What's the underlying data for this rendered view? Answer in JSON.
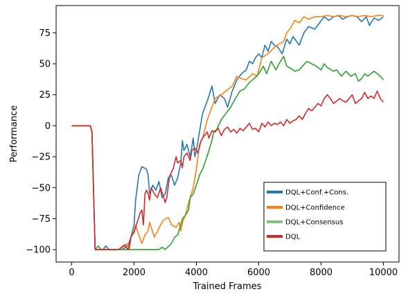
{
  "chart_data": {
    "type": "line",
    "title": "",
    "xlabel": "Trained Frames",
    "ylabel": "Performance",
    "xlim": [
      -500,
      10500
    ],
    "ylim": [
      -110,
      97
    ],
    "xticks": [
      0,
      2000,
      4000,
      6000,
      8000,
      10000
    ],
    "yticks": [
      -100,
      -75,
      -50,
      -25,
      0,
      25,
      50,
      75
    ],
    "xtick_labels": [
      "0",
      "2000",
      "4000",
      "6000",
      "8000",
      "10000"
    ],
    "ytick_labels": [
      "−100",
      "−75",
      "−50",
      "−25",
      "0",
      "25",
      "50",
      "75"
    ],
    "grid": false,
    "legend_position": "lower-right",
    "series": [
      {
        "name": "DQL+Conf.+Cons.",
        "color": "#1f77b4",
        "points": [
          [
            0,
            0
          ],
          [
            600,
            0
          ],
          [
            650,
            -5
          ],
          [
            750,
            -100
          ],
          [
            1000,
            -100
          ],
          [
            1100,
            -97
          ],
          [
            1200,
            -100
          ],
          [
            1600,
            -100
          ],
          [
            1800,
            -97
          ],
          [
            1900,
            -90
          ],
          [
            2000,
            -80
          ],
          [
            2050,
            -60
          ],
          [
            2150,
            -40
          ],
          [
            2250,
            -33
          ],
          [
            2400,
            -35
          ],
          [
            2450,
            -40
          ],
          [
            2500,
            -55
          ],
          [
            2600,
            -48
          ],
          [
            2700,
            -52
          ],
          [
            2800,
            -45
          ],
          [
            2900,
            -58
          ],
          [
            3000,
            -55
          ],
          [
            3100,
            -42
          ],
          [
            3200,
            -40
          ],
          [
            3300,
            -48
          ],
          [
            3400,
            -42
          ],
          [
            3500,
            -30
          ],
          [
            3550,
            -12
          ],
          [
            3600,
            -20
          ],
          [
            3700,
            -15
          ],
          [
            3800,
            -25
          ],
          [
            3900,
            -10
          ],
          [
            3950,
            -25
          ],
          [
            4000,
            -20
          ],
          [
            4100,
            -5
          ],
          [
            4200,
            10
          ],
          [
            4350,
            20
          ],
          [
            4500,
            32
          ],
          [
            4600,
            18
          ],
          [
            4750,
            25
          ],
          [
            4900,
            22
          ],
          [
            5000,
            15
          ],
          [
            5150,
            28
          ],
          [
            5300,
            37
          ],
          [
            5450,
            42
          ],
          [
            5600,
            45
          ],
          [
            5700,
            52
          ],
          [
            5800,
            50
          ],
          [
            5900,
            55
          ],
          [
            6000,
            58
          ],
          [
            6100,
            55
          ],
          [
            6200,
            65
          ],
          [
            6300,
            60
          ],
          [
            6400,
            68
          ],
          [
            6500,
            65
          ],
          [
            6600,
            64
          ],
          [
            6750,
            58
          ],
          [
            6900,
            70
          ],
          [
            7000,
            66
          ],
          [
            7100,
            72
          ],
          [
            7300,
            65
          ],
          [
            7450,
            75
          ],
          [
            7600,
            80
          ],
          [
            7800,
            78
          ],
          [
            7950,
            83
          ],
          [
            8100,
            88
          ],
          [
            8250,
            85
          ],
          [
            8400,
            88
          ],
          [
            8550,
            89
          ],
          [
            8700,
            86
          ],
          [
            8850,
            88
          ],
          [
            9000,
            89
          ],
          [
            9150,
            88
          ],
          [
            9300,
            84
          ],
          [
            9450,
            88
          ],
          [
            9550,
            81
          ],
          [
            9700,
            87
          ],
          [
            9850,
            85
          ],
          [
            10000,
            88
          ]
        ]
      },
      {
        "name": "DQL+Confidence",
        "color": "#ff7f0e",
        "points": [
          [
            0,
            0
          ],
          [
            600,
            0
          ],
          [
            650,
            -5
          ],
          [
            750,
            -100
          ],
          [
            1000,
            -100
          ],
          [
            1200,
            -100
          ],
          [
            1500,
            -100
          ],
          [
            1700,
            -97
          ],
          [
            1800,
            -95
          ],
          [
            1850,
            -100
          ],
          [
            1900,
            -90
          ],
          [
            2000,
            -85
          ],
          [
            2050,
            -80
          ],
          [
            2150,
            -88
          ],
          [
            2250,
            -95
          ],
          [
            2350,
            -88
          ],
          [
            2450,
            -85
          ],
          [
            2500,
            -78
          ],
          [
            2650,
            -90
          ],
          [
            2750,
            -85
          ],
          [
            2850,
            -80
          ],
          [
            2950,
            -76
          ],
          [
            3100,
            -74
          ],
          [
            3200,
            -80
          ],
          [
            3350,
            -82
          ],
          [
            3450,
            -78
          ],
          [
            3500,
            -85
          ],
          [
            3550,
            -78
          ],
          [
            3650,
            -72
          ],
          [
            3750,
            -62
          ],
          [
            3800,
            -58
          ],
          [
            3900,
            -50
          ],
          [
            4000,
            -35
          ],
          [
            4100,
            -15
          ],
          [
            4200,
            -10
          ],
          [
            4350,
            5
          ],
          [
            4500,
            15
          ],
          [
            4600,
            22
          ],
          [
            4800,
            25
          ],
          [
            4950,
            28
          ],
          [
            5150,
            32
          ],
          [
            5300,
            40
          ],
          [
            5450,
            38
          ],
          [
            5600,
            37
          ],
          [
            5800,
            42
          ],
          [
            5950,
            40
          ],
          [
            6100,
            55
          ],
          [
            6300,
            58
          ],
          [
            6450,
            62
          ],
          [
            6650,
            66
          ],
          [
            6800,
            68
          ],
          [
            6900,
            75
          ],
          [
            7050,
            80
          ],
          [
            7150,
            85
          ],
          [
            7300,
            83
          ],
          [
            7450,
            88
          ],
          [
            7600,
            86
          ],
          [
            7800,
            88
          ],
          [
            8000,
            88
          ],
          [
            8200,
            89
          ],
          [
            8400,
            88
          ],
          [
            8600,
            89
          ],
          [
            8800,
            88
          ],
          [
            9000,
            89
          ],
          [
            9200,
            88
          ],
          [
            9400,
            89
          ],
          [
            9600,
            88
          ],
          [
            9800,
            89
          ],
          [
            10000,
            89
          ]
        ]
      },
      {
        "name": "DQL+Consensus",
        "color": "#2ca02c",
        "points": [
          [
            0,
            0
          ],
          [
            600,
            0
          ],
          [
            650,
            -5
          ],
          [
            750,
            -100
          ],
          [
            850,
            -97
          ],
          [
            950,
            -100
          ],
          [
            1200,
            -100
          ],
          [
            1600,
            -100
          ],
          [
            2000,
            -100
          ],
          [
            2500,
            -100
          ],
          [
            2800,
            -100
          ],
          [
            2900,
            -98
          ],
          [
            3000,
            -100
          ],
          [
            3200,
            -95
          ],
          [
            3300,
            -90
          ],
          [
            3400,
            -88
          ],
          [
            3500,
            -80
          ],
          [
            3550,
            -75
          ],
          [
            3650,
            -72
          ],
          [
            3750,
            -68
          ],
          [
            3800,
            -58
          ],
          [
            3900,
            -55
          ],
          [
            4000,
            -48
          ],
          [
            4100,
            -40
          ],
          [
            4200,
            -35
          ],
          [
            4300,
            -28
          ],
          [
            4400,
            -20
          ],
          [
            4500,
            -12
          ],
          [
            4550,
            -5
          ],
          [
            4650,
            -3
          ],
          [
            4800,
            5
          ],
          [
            4950,
            10
          ],
          [
            5100,
            15
          ],
          [
            5250,
            22
          ],
          [
            5400,
            28
          ],
          [
            5550,
            30
          ],
          [
            5700,
            35
          ],
          [
            5850,
            38
          ],
          [
            6000,
            42
          ],
          [
            6150,
            48
          ],
          [
            6250,
            42
          ],
          [
            6400,
            52
          ],
          [
            6550,
            45
          ],
          [
            6650,
            50
          ],
          [
            6800,
            56
          ],
          [
            6900,
            48
          ],
          [
            7050,
            46
          ],
          [
            7150,
            44
          ],
          [
            7300,
            45
          ],
          [
            7400,
            48
          ],
          [
            7550,
            52
          ],
          [
            7700,
            50
          ],
          [
            7850,
            48
          ],
          [
            8000,
            45
          ],
          [
            8100,
            50
          ],
          [
            8200,
            47
          ],
          [
            8400,
            44
          ],
          [
            8500,
            45
          ],
          [
            8650,
            40
          ],
          [
            8800,
            44
          ],
          [
            8950,
            40
          ],
          [
            9100,
            42
          ],
          [
            9200,
            36
          ],
          [
            9300,
            38
          ],
          [
            9400,
            42
          ],
          [
            9500,
            40
          ],
          [
            9600,
            42
          ],
          [
            9700,
            44
          ],
          [
            9800,
            42
          ],
          [
            9900,
            40
          ],
          [
            10000,
            37
          ]
        ]
      },
      {
        "name": "DQL",
        "color": "#d62728",
        "points": [
          [
            0,
            0
          ],
          [
            600,
            0
          ],
          [
            650,
            -5
          ],
          [
            750,
            -100
          ],
          [
            1000,
            -100
          ],
          [
            1200,
            -100
          ],
          [
            1500,
            -100
          ],
          [
            1700,
            -96
          ],
          [
            1800,
            -100
          ],
          [
            1850,
            -97
          ],
          [
            1900,
            -90
          ],
          [
            2000,
            -86
          ],
          [
            2100,
            -78
          ],
          [
            2200,
            -70
          ],
          [
            2250,
            -68
          ],
          [
            2300,
            -80
          ],
          [
            2350,
            -55
          ],
          [
            2400,
            -52
          ],
          [
            2450,
            -55
          ],
          [
            2500,
            -60
          ],
          [
            2550,
            -50
          ],
          [
            2650,
            -55
          ],
          [
            2750,
            -58
          ],
          [
            2850,
            -50
          ],
          [
            3000,
            -62
          ],
          [
            3050,
            -58
          ],
          [
            3100,
            -48
          ],
          [
            3150,
            -40
          ],
          [
            3250,
            -35
          ],
          [
            3350,
            -25
          ],
          [
            3400,
            -30
          ],
          [
            3500,
            -28
          ],
          [
            3550,
            -34
          ],
          [
            3600,
            -25
          ],
          [
            3700,
            -22
          ],
          [
            3800,
            -28
          ],
          [
            3850,
            -20
          ],
          [
            3950,
            -18
          ],
          [
            4050,
            -22
          ],
          [
            4150,
            -12
          ],
          [
            4250,
            -8
          ],
          [
            4350,
            -5
          ],
          [
            4400,
            -10
          ],
          [
            4500,
            -4
          ],
          [
            4600,
            -5
          ],
          [
            4700,
            -2
          ],
          [
            4800,
            -8
          ],
          [
            4900,
            -3
          ],
          [
            5000,
            -1
          ],
          [
            5100,
            -5
          ],
          [
            5200,
            -3
          ],
          [
            5300,
            -6
          ],
          [
            5400,
            -2
          ],
          [
            5500,
            -4
          ],
          [
            5600,
            -1
          ],
          [
            5700,
            2
          ],
          [
            5800,
            -3
          ],
          [
            5900,
            -2
          ],
          [
            6000,
            -5
          ],
          [
            6100,
            2
          ],
          [
            6200,
            -1
          ],
          [
            6300,
            3
          ],
          [
            6400,
            0
          ],
          [
            6500,
            2
          ],
          [
            6600,
            1
          ],
          [
            6700,
            3
          ],
          [
            6800,
            0
          ],
          [
            6900,
            5
          ],
          [
            7000,
            2
          ],
          [
            7100,
            4
          ],
          [
            7200,
            5
          ],
          [
            7300,
            8
          ],
          [
            7400,
            5
          ],
          [
            7500,
            10
          ],
          [
            7600,
            14
          ],
          [
            7700,
            12
          ],
          [
            7800,
            15
          ],
          [
            7900,
            18
          ],
          [
            8000,
            16
          ],
          [
            8100,
            22
          ],
          [
            8200,
            25
          ],
          [
            8300,
            22
          ],
          [
            8400,
            18
          ],
          [
            8500,
            20
          ],
          [
            8600,
            22
          ],
          [
            8700,
            20
          ],
          [
            8800,
            19
          ],
          [
            8900,
            22
          ],
          [
            9000,
            25
          ],
          [
            9100,
            18
          ],
          [
            9200,
            20
          ],
          [
            9300,
            22
          ],
          [
            9400,
            27
          ],
          [
            9500,
            22
          ],
          [
            9600,
            24
          ],
          [
            9700,
            22
          ],
          [
            9800,
            28
          ],
          [
            9900,
            22
          ],
          [
            10000,
            19
          ]
        ]
      }
    ]
  }
}
